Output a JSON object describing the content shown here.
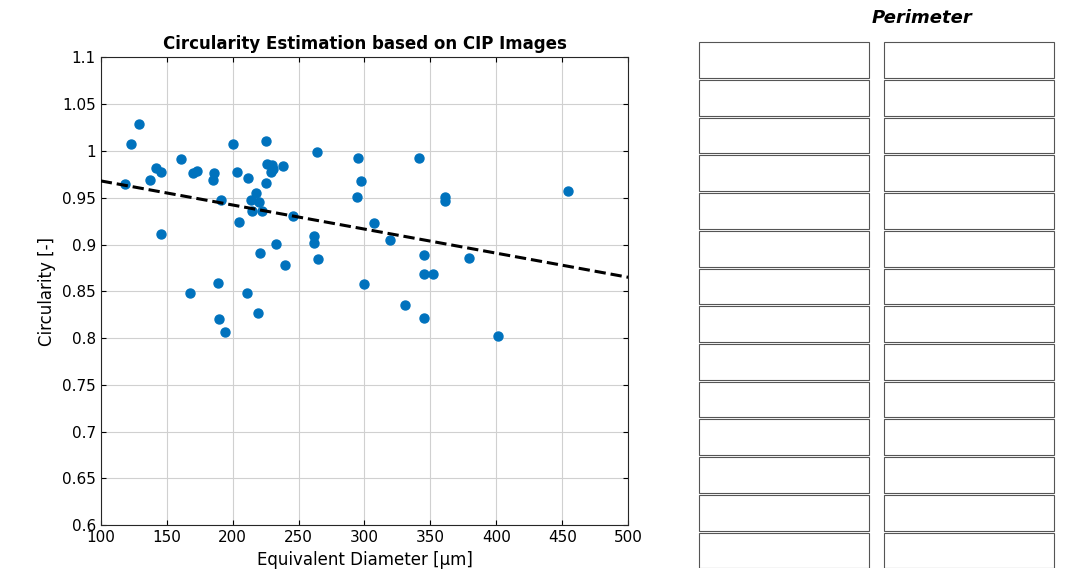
{
  "chart_data": {
    "type": "scatter",
    "title": "Circularity Estimation based on CIP Images",
    "x_label": "Equivalent Diameter [µm]",
    "y_label": "Circularity [-]",
    "annotation": "Perimeter",
    "xlim": [
      100,
      500
    ],
    "xticks": [
      100,
      150,
      200,
      250,
      300,
      350,
      400,
      450,
      500
    ],
    "ylim": [
      0.6,
      1.1
    ],
    "yticks": [
      0.6,
      0.65,
      0.7,
      0.75,
      0.8,
      0.85,
      0.9,
      0.95,
      1,
      1.05,
      1.1
    ],
    "grid": true,
    "series": [
      {
        "type": "scatter",
        "color": "#0072BD",
        "marker": "circle",
        "x": [
          118,
          123,
          129,
          137,
          142,
          146,
          146,
          161,
          168,
          170,
          173,
          185,
          186,
          189,
          190,
          191,
          194,
          200,
          203,
          205,
          211,
          212,
          214,
          215,
          218,
          219,
          220,
          221,
          222,
          225,
          225,
          226,
          229,
          230,
          231,
          233,
          238,
          240,
          246,
          262,
          262,
          264,
          265,
          294,
          295,
          297,
          300,
          307,
          319,
          331,
          341,
          345,
          345,
          345,
          352,
          361,
          361,
          379,
          401,
          454
        ],
        "values": [
          0.965,
          1.007,
          1.029,
          0.969,
          0.982,
          0.978,
          0.911,
          0.991,
          0.848,
          0.976,
          0.979,
          0.969,
          0.976,
          0.859,
          0.82,
          0.948,
          0.807,
          1.007,
          0.978,
          0.924,
          0.848,
          0.971,
          0.948,
          0.936,
          0.955,
          0.827,
          0.945,
          0.891,
          0.936,
          1.011,
          0.966,
          0.986,
          0.977,
          0.985,
          0.981,
          0.901,
          0.984,
          0.878,
          0.931,
          0.909,
          0.902,
          0.999,
          0.885,
          0.951,
          0.993,
          0.968,
          0.858,
          0.923,
          0.905,
          0.835,
          0.992,
          0.821,
          0.889,
          0.869,
          0.869,
          0.951,
          0.947,
          0.886,
          0.802,
          0.957
        ]
      },
      {
        "type": "line",
        "color": "#000000",
        "line_style": "dashed",
        "x": [
          100,
          500
        ],
        "values": [
          0.968,
          0.865
        ]
      }
    ]
  }
}
